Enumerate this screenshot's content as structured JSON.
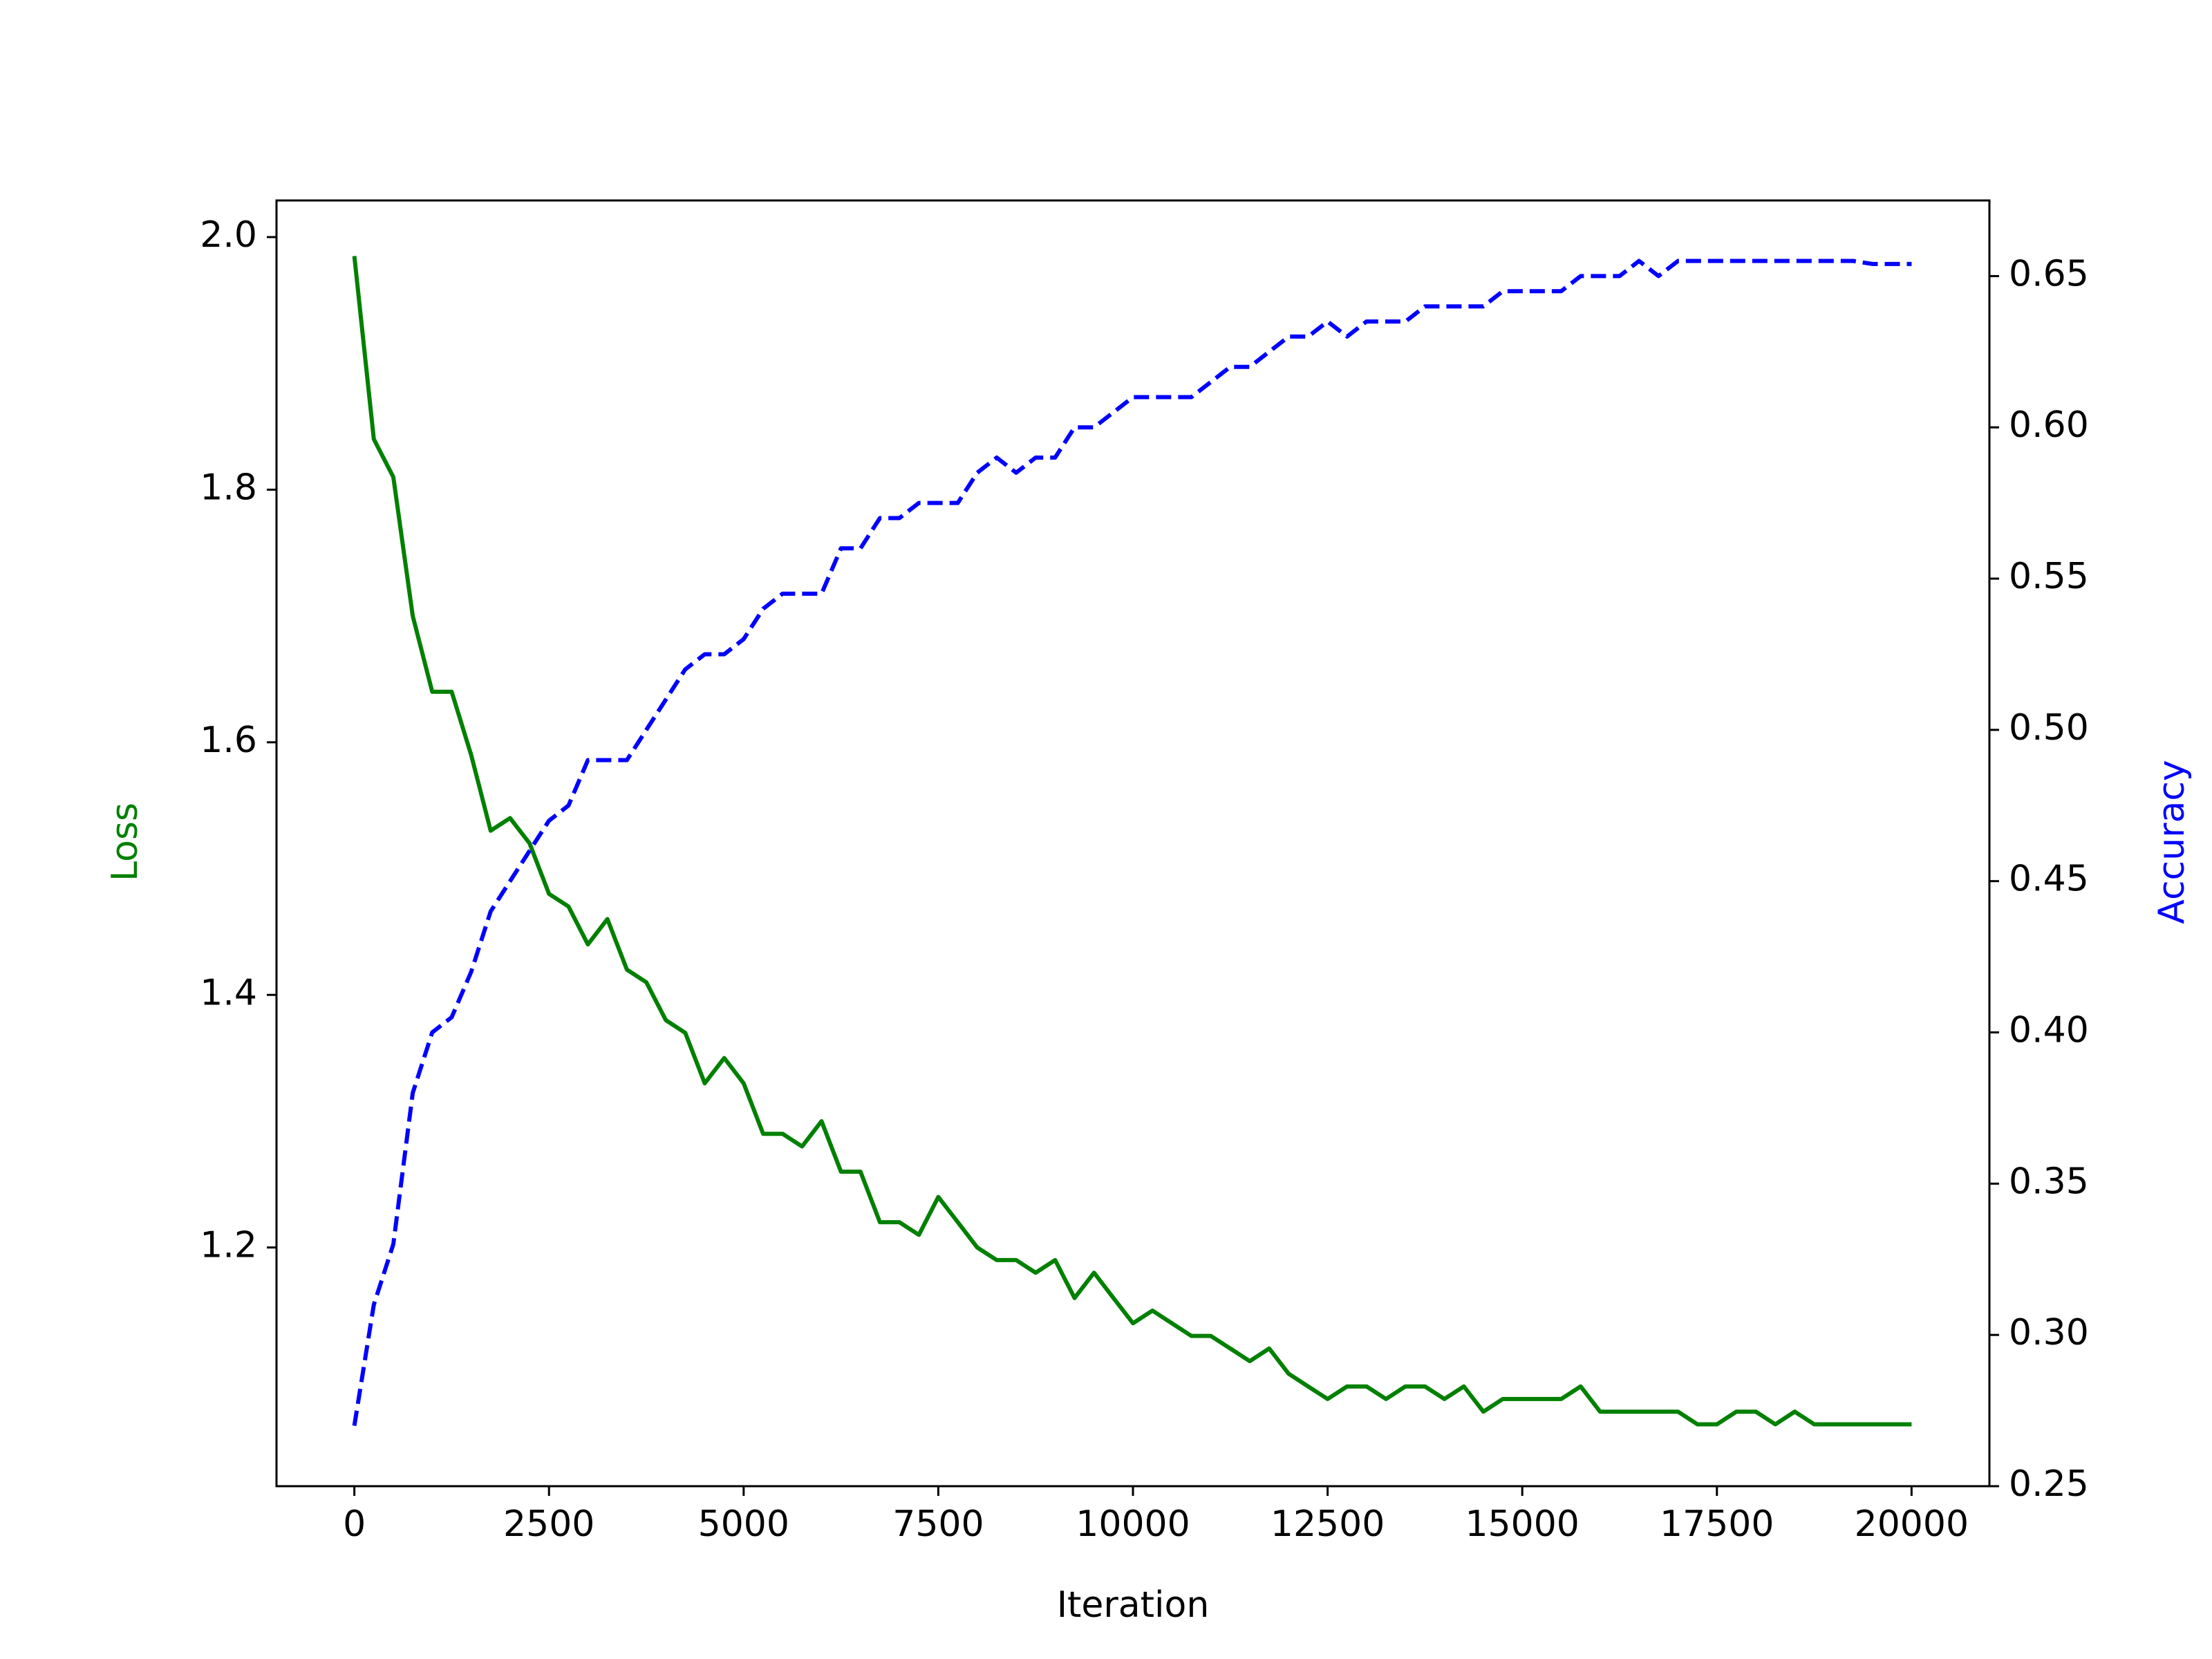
{
  "chart_data": {
    "type": "line",
    "xlabel": "Iteration",
    "ylabel": "Loss",
    "y2label": "Accuracy",
    "x": [
      0,
      250,
      500,
      750,
      1000,
      1250,
      1500,
      1750,
      2000,
      2250,
      2500,
      2750,
      3000,
      3250,
      3500,
      3750,
      4000,
      4250,
      4500,
      4750,
      5000,
      5250,
      5500,
      5750,
      6000,
      6250,
      6500,
      6750,
      7000,
      7250,
      7500,
      7750,
      8000,
      8250,
      8500,
      8750,
      9000,
      9250,
      9500,
      9750,
      10000,
      10250,
      10500,
      10750,
      11000,
      11250,
      11500,
      11750,
      12000,
      12250,
      12500,
      12750,
      13000,
      13250,
      13500,
      13750,
      14000,
      14250,
      14500,
      14750,
      15000,
      15250,
      15500,
      15750,
      16000,
      16250,
      16500,
      16750,
      17000,
      17250,
      17500,
      17750,
      18000,
      18250,
      18500,
      18750,
      19000,
      19250,
      19500,
      19750,
      20000
    ],
    "series": [
      {
        "color": "#008000",
        "line_style": "solid",
        "axis": "y",
        "values": [
          1.985,
          1.84,
          1.81,
          1.7,
          1.64,
          1.64,
          1.59,
          1.53,
          1.54,
          1.52,
          1.48,
          1.47,
          1.44,
          1.46,
          1.42,
          1.41,
          1.38,
          1.37,
          1.33,
          1.35,
          1.33,
          1.29,
          1.29,
          1.28,
          1.3,
          1.26,
          1.26,
          1.22,
          1.22,
          1.21,
          1.24,
          1.22,
          1.2,
          1.19,
          1.19,
          1.18,
          1.19,
          1.16,
          1.18,
          1.16,
          1.14,
          1.15,
          1.14,
          1.13,
          1.13,
          1.12,
          1.11,
          1.12,
          1.1,
          1.09,
          1.08,
          1.09,
          1.09,
          1.08,
          1.09,
          1.09,
          1.08,
          1.09,
          1.07,
          1.08,
          1.08,
          1.08,
          1.08,
          1.09,
          1.07,
          1.07,
          1.07,
          1.07,
          1.07,
          1.06,
          1.06,
          1.07,
          1.07,
          1.06,
          1.07,
          1.06,
          1.06,
          1.06,
          1.06,
          1.06,
          1.06
        ]
      },
      {
        "color": "#0000ff",
        "line_style": "dashed",
        "axis": "y2",
        "values": [
          0.27,
          0.31,
          0.33,
          0.38,
          0.4,
          0.405,
          0.42,
          0.44,
          0.45,
          0.46,
          0.47,
          0.475,
          0.49,
          0.49,
          0.49,
          0.5,
          0.51,
          0.52,
          0.525,
          0.525,
          0.53,
          0.54,
          0.545,
          0.545,
          0.545,
          0.56,
          0.56,
          0.57,
          0.57,
          0.575,
          0.575,
          0.575,
          0.585,
          0.59,
          0.585,
          0.59,
          0.59,
          0.6,
          0.6,
          0.605,
          0.61,
          0.61,
          0.61,
          0.61,
          0.615,
          0.62,
          0.62,
          0.625,
          0.63,
          0.63,
          0.635,
          0.63,
          0.635,
          0.635,
          0.635,
          0.64,
          0.64,
          0.64,
          0.64,
          0.645,
          0.645,
          0.645,
          0.645,
          0.65,
          0.65,
          0.65,
          0.655,
          0.65,
          0.655,
          0.655,
          0.655,
          0.655,
          0.655,
          0.655,
          0.655,
          0.655,
          0.655,
          0.655,
          0.654,
          0.654,
          0.654
        ]
      }
    ],
    "xlim": [
      -1000,
      21000
    ],
    "xticks": [
      0,
      2500,
      5000,
      7500,
      10000,
      12500,
      15000,
      17500,
      20000
    ],
    "ylim": [
      1.011,
      2.029
    ],
    "yticks": [
      1.2,
      1.4,
      1.6,
      1.8,
      {
        "value": 2,
        "label": "2.0"
      }
    ],
    "y2lim": [
      0.25,
      0.675
    ],
    "y2ticks": [
      0.25,
      {
        "value": 0.3,
        "label": "0.30"
      },
      0.35,
      {
        "value": 0.4,
        "label": "0.40"
      },
      0.45,
      {
        "value": 0.5,
        "label": "0.50"
      },
      0.55,
      {
        "value": 0.6,
        "label": "0.60"
      },
      0.65
    ],
    "grid": false
  }
}
